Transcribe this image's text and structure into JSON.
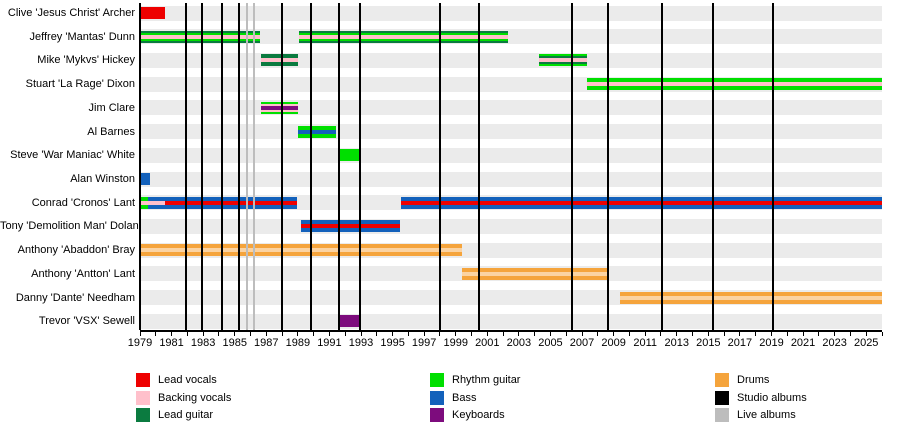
{
  "chart_data": {
    "type": "timeline",
    "description": "Band members timeline with instrument roles and album release markers",
    "x_axis": {
      "start_year": 1979,
      "end_year": 2026,
      "tick_every_years": 1,
      "label_every_years": 2,
      "tick_labels": [
        "1979",
        "1981",
        "1983",
        "1985",
        "1987",
        "1989",
        "1991",
        "1993",
        "1995",
        "1997",
        "1999",
        "2001",
        "2003",
        "2005",
        "2007",
        "2009",
        "2011",
        "2013",
        "2015",
        "2017",
        "2019",
        "2021",
        "2023",
        "2025"
      ]
    },
    "rows": [
      {
        "name": "Clive 'Jesus Christ' Archer",
        "segments": [
          {
            "start": 1979,
            "end": 1980.6,
            "layers": [
              "lead_vocals"
            ]
          }
        ]
      },
      {
        "name": "Jeffrey 'Mantas' Dunn",
        "segments": [
          {
            "start": 1979,
            "end": 1986.6,
            "layers": [
              "lead_guitar",
              "rhythm_guitar",
              "backing_vocals"
            ]
          },
          {
            "start": 1989.1,
            "end": 2002.3,
            "layers": [
              "lead_guitar",
              "rhythm_guitar",
              "backing_vocals"
            ]
          }
        ]
      },
      {
        "name": "Mike 'Mykvs' Hickey",
        "segments": [
          {
            "start": 1986.65,
            "end": 1989.0,
            "layers": [
              "lead_guitar",
              "backing_vocals"
            ]
          },
          {
            "start": 2004.3,
            "end": 2007.3,
            "layers": [
              "rhythm_guitar",
              "lead_guitar",
              "backing_vocals"
            ]
          }
        ]
      },
      {
        "name": "Stuart 'La Rage' Dixon",
        "segments": [
          {
            "start": 2007.3,
            "end": 2026,
            "layers": [
              "rhythm_guitar",
              "backing_vocals"
            ]
          }
        ]
      },
      {
        "name": "Jim Clare",
        "segments": [
          {
            "start": 1986.65,
            "end": 1989.0,
            "layers": [
              "rhythm_guitar",
              "backing_vocals",
              "keyboards"
            ]
          }
        ]
      },
      {
        "name": "Al Barnes",
        "segments": [
          {
            "start": 1989.0,
            "end": 1991.4,
            "layers": [
              "rhythm_guitar",
              "bass"
            ]
          }
        ]
      },
      {
        "name": "Steve 'War Maniac' White",
        "segments": [
          {
            "start": 1991.6,
            "end": 1992.95,
            "layers": [
              "rhythm_guitar"
            ]
          }
        ]
      },
      {
        "name": "Alan Winston",
        "segments": [
          {
            "start": 1979,
            "end": 1979.65,
            "layers": [
              "bass"
            ]
          }
        ]
      },
      {
        "name": "Conrad 'Cronos' Lant",
        "segments": [
          {
            "start": 1979,
            "end": 1979.5,
            "layers": [
              "rhythm_guitar",
              "backing_vocals"
            ]
          },
          {
            "start": 1979.5,
            "end": 1980.6,
            "layers": [
              "bass",
              "backing_vocals"
            ]
          },
          {
            "start": 1980.6,
            "end": 1988.95,
            "layers": [
              "bass",
              "lead_vocals"
            ]
          },
          {
            "start": 1995.55,
            "end": 2026,
            "layers": [
              "bass",
              "lead_vocals"
            ]
          }
        ]
      },
      {
        "name": "Tony 'Demolition Man' Dolan",
        "segments": [
          {
            "start": 1989.2,
            "end": 1995.5,
            "layers": [
              "bass",
              "lead_vocals"
            ]
          }
        ]
      },
      {
        "name": "Anthony 'Abaddon' Bray",
        "segments": [
          {
            "start": 1979,
            "end": 1999.4,
            "layers": [
              "drums",
              "drums_highlight"
            ]
          }
        ]
      },
      {
        "name": "Anthony 'Antton' Lant",
        "segments": [
          {
            "start": 1999.4,
            "end": 2008.6,
            "layers": [
              "drums",
              "drums_highlight"
            ]
          }
        ]
      },
      {
        "name": "Danny 'Dante' Needham",
        "segments": [
          {
            "start": 2009.4,
            "end": 2026,
            "layers": [
              "drums",
              "drums_highlight"
            ]
          }
        ]
      },
      {
        "name": "Trevor 'VSX' Sewell",
        "segments": [
          {
            "start": 1991.6,
            "end": 1992.95,
            "layers": [
              "keyboards"
            ]
          }
        ]
      }
    ],
    "studio_albums_years": [
      1981.9,
      1982.9,
      1984.2,
      1985.3,
      1988.0,
      1989.85,
      1991.6,
      1992.95,
      1998.0,
      2000.45,
      2006.35,
      2008.65,
      2012.05,
      2015.3,
      2019.1
    ],
    "live_albums_years": [
      1985.75,
      1986.25
    ],
    "legend": {
      "columns": [
        {
          "items": [
            {
              "label": "Lead vocals",
              "color_key": "lead_vocals"
            },
            {
              "label": "Backing vocals",
              "color_key": "backing_vocals"
            },
            {
              "label": "Lead guitar",
              "color_key": "lead_guitar"
            }
          ]
        },
        {
          "items": [
            {
              "label": "Rhythm guitar",
              "color_key": "rhythm_guitar"
            },
            {
              "label": "Bass",
              "color_key": "bass"
            },
            {
              "label": "Keyboards",
              "color_key": "keyboards"
            }
          ]
        },
        {
          "items": [
            {
              "label": "Drums",
              "color_key": "drums"
            },
            {
              "label": "Studio albums",
              "color_key": "studio_albums"
            },
            {
              "label": "Live albums",
              "color_key": "live_albums"
            }
          ]
        }
      ]
    },
    "colors": {
      "lead_vocals": "#EE0000",
      "backing_vocals": "#FFC0CB",
      "lead_guitar": "#0B7B40",
      "rhythm_guitar": "#00DF00",
      "bass": "#1361BB",
      "keyboards": "#7D0C7D",
      "drums": "#F5A43C",
      "drums_highlight": "#FBD3A2",
      "studio_albums": "#000000",
      "live_albums": "#BDBDBD",
      "row_stripe": "#EBEBEB"
    }
  }
}
